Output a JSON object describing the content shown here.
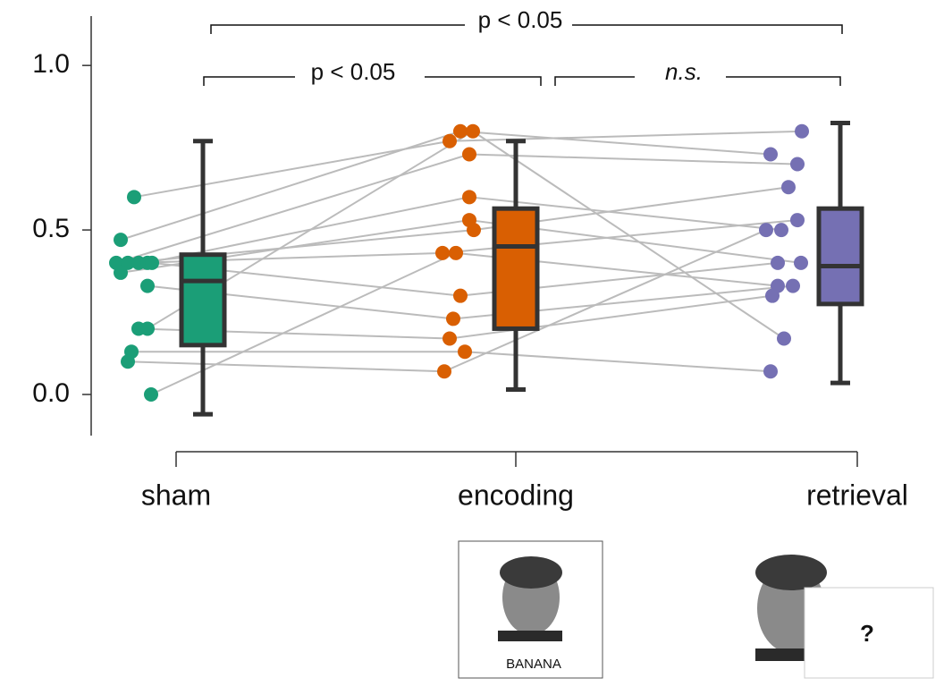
{
  "chart_data": {
    "type": "box",
    "categories": [
      "sham",
      "encoding",
      "retrieval"
    ],
    "ylim": [
      -0.125,
      1.15
    ],
    "yticks": [
      {
        "value": 0,
        "label": "0.0"
      },
      0.5,
      {
        "value": 1,
        "label": "1.0"
      }
    ],
    "line_color": "#bbbbbb",
    "boxes": [
      {
        "color": "#1b9e77",
        "whislo": -0.06,
        "q1": 0.15,
        "median": 0.345,
        "q3": 0.425,
        "whishi": 0.77,
        "values": [
          0.6,
          0.47,
          0.4,
          0.4,
          0.4,
          0.4,
          0.4,
          0.37,
          0.33,
          0.2,
          0.2,
          0.13,
          0.1,
          0.0
        ]
      },
      {
        "color": "#d95f02",
        "whislo": 0.015,
        "q1": 0.2,
        "median": 0.45,
        "q3": 0.565,
        "whishi": 0.77,
        "values": [
          0.77,
          0.8,
          0.73,
          0.5,
          0.43,
          0.6,
          0.3,
          0.53,
          0.23,
          0.17,
          0.8,
          0.13,
          0.07,
          0.43
        ]
      },
      {
        "color": "#7570b3",
        "whislo": 0.035,
        "q1": 0.275,
        "median": 0.39,
        "q3": 0.565,
        "whishi": 0.825,
        "values": [
          0.8,
          0.73,
          0.7,
          0.63,
          0.53,
          0.5,
          0.4,
          0.4,
          0.33,
          0.3,
          0.17,
          0.07,
          0.5,
          0.33
        ]
      }
    ],
    "annotations": [
      "p < 0.05",
      "p < 0.05",
      "n.s."
    ]
  },
  "stimuli": {
    "encoding_word": "BANANA",
    "retrieval_cue": "?"
  }
}
